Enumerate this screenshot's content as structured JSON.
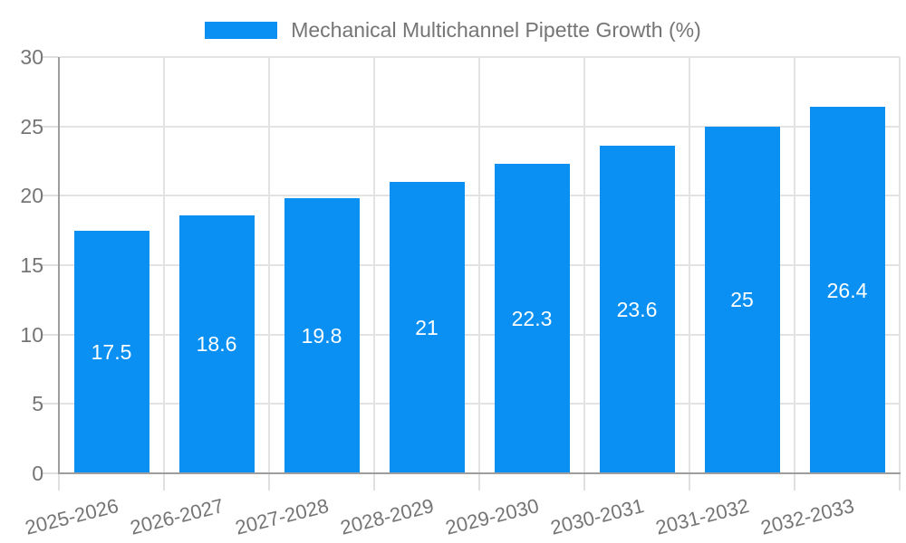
{
  "legend": {
    "label": "Mechanical Multichannel Pipette Growth (%)",
    "swatch_color": "#0a90f2"
  },
  "chart_data": {
    "type": "bar",
    "title": "Mechanical Multichannel Pipette Growth (%)",
    "categories": [
      "2025-2026",
      "2026-2027",
      "2027-2028",
      "2028-2029",
      "2029-2030",
      "2030-2031",
      "2031-2032",
      "2032-2033"
    ],
    "values": [
      17.5,
      18.6,
      19.8,
      21,
      22.3,
      23.6,
      25,
      26.4
    ],
    "value_labels": [
      "17.5",
      "18.6",
      "19.8",
      "21",
      "22.3",
      "23.6",
      "25",
      "26.4"
    ],
    "xlabel": "",
    "ylabel": "",
    "ylim": [
      0,
      30
    ],
    "yticks": [
      "0",
      "5",
      "10",
      "15",
      "20",
      "25",
      "30"
    ],
    "grid": true,
    "legend_position": "top",
    "colors": {
      "bar": "#0a90f2",
      "bar_value_text": "#ffffff",
      "gridline": "#e3e3e3",
      "axis_line": "#9e9e9e",
      "tick_text": "#757575",
      "legend_text": "#757575"
    }
  }
}
